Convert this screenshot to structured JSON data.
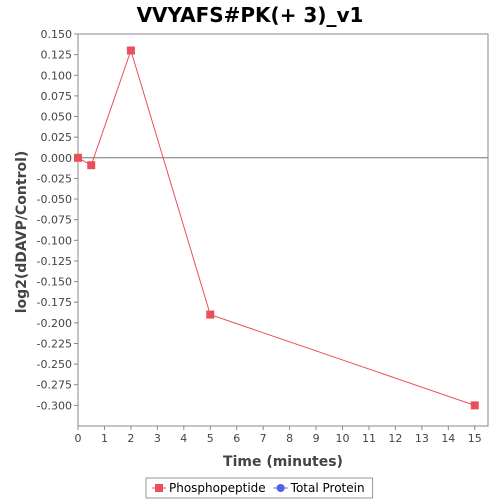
{
  "chart_data": {
    "type": "line",
    "title": "VVYAFS#PK(+ 3)_v1",
    "xlabel": "Time (minutes)",
    "ylabel": "log2(dDAVP/Control)",
    "xlim": [
      0,
      15.5
    ],
    "ylim": [
      -0.325,
      0.15
    ],
    "xticks": [
      "0",
      "1",
      "2",
      "3",
      "4",
      "5",
      "6",
      "7",
      "8",
      "9",
      "10",
      "11",
      "12",
      "13",
      "14",
      "15"
    ],
    "yticks": [
      "0.150",
      "0.125",
      "0.100",
      "0.075",
      "0.050",
      "0.025",
      "0.000",
      "-0.025",
      "-0.050",
      "-0.075",
      "-0.100",
      "-0.125",
      "-0.150",
      "-0.175",
      "-0.200",
      "-0.225",
      "-0.250",
      "-0.275",
      "-0.300"
    ],
    "zero_line": true,
    "grid": false,
    "legend_position": "bottom",
    "series": [
      {
        "name": "Phosphopeptide",
        "color": "#e8505b",
        "marker": "square",
        "x": [
          0,
          0.5,
          2,
          5,
          15
        ],
        "y": [
          0.0,
          -0.009,
          0.13,
          -0.19,
          -0.3
        ]
      },
      {
        "name": "Total Protein",
        "color": "#5060e8",
        "marker": "circle",
        "x": [],
        "y": []
      }
    ]
  }
}
